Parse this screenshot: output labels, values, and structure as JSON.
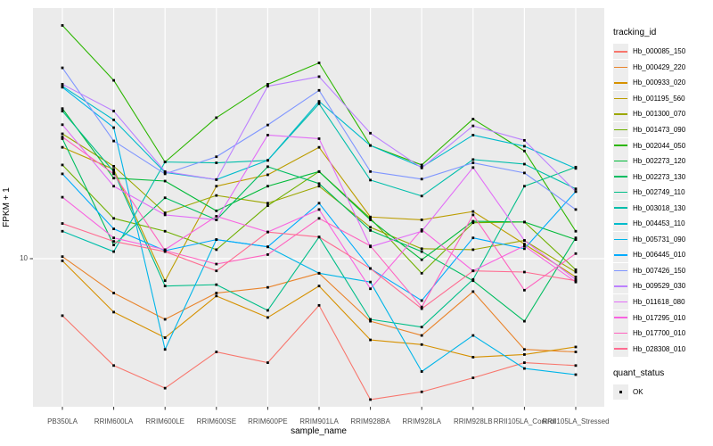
{
  "figure": {
    "panel_bg": "#ebebeb",
    "grid_color": "#ffffff",
    "tick_color": "#333333",
    "tick_label_color": "#4d4d4d",
    "point_color": "#000000"
  },
  "chart_data": {
    "type": "line",
    "title": "",
    "xlabel": "sample_name",
    "ylabel": "FPKM + 1",
    "y_scale": "log10",
    "y_ticks": [
      10
    ],
    "y_tick_labels": [
      "10"
    ],
    "ylim": [
      2.4,
      100
    ],
    "grid": "major-only",
    "marker": {
      "shape": "square",
      "color": "#000000",
      "label": "OK"
    },
    "legend": {
      "title": "tracking_id",
      "position": "right"
    },
    "legend2": {
      "title": "quant_status",
      "items": [
        {
          "label": "OK",
          "marker": "square",
          "color": "#000000"
        }
      ]
    },
    "categories": [
      "PB350LA",
      "RRIM600LA",
      "RRIM600LE",
      "RRIM600SE",
      "RRIM600PE",
      "RRIM901LA",
      "RRIM928BA",
      "RRIM928LA",
      "RRIM928LB",
      "RRII105LA_Control",
      "RRII105LA_Stressed"
    ],
    "series": [
      {
        "name": "Hb_000085_150",
        "color": "#F8766D",
        "values": [
          5.8,
          3.6,
          2.9,
          4.1,
          3.7,
          6.4,
          2.6,
          2.8,
          3.2,
          3.7,
          3.6
        ]
      },
      {
        "name": "Hb_000429_220",
        "color": "#E9842C",
        "values": [
          10.2,
          7.2,
          5.6,
          7.2,
          7.6,
          8.7,
          5.5,
          4.8,
          7.3,
          4.2,
          4.1
        ]
      },
      {
        "name": "Hb_000933_020",
        "color": "#D69100",
        "values": [
          9.8,
          6.0,
          4.7,
          7.0,
          5.7,
          7.7,
          4.6,
          4.4,
          3.9,
          4.0,
          4.3
        ]
      },
      {
        "name": "Hb_001195_560",
        "color": "#BC9D00",
        "values": [
          29,
          23.5,
          8.1,
          20,
          22.3,
          29,
          14.9,
          14.5,
          15.7,
          11.5,
          8.4
        ]
      },
      {
        "name": "Hb_001300_070",
        "color": "#9CA700",
        "values": [
          33,
          24.2,
          15.5,
          18.3,
          17.0,
          20.0,
          13.5,
          11.0,
          10.9,
          11.9,
          8.8
        ]
      },
      {
        "name": "Hb_001473_090",
        "color": "#6FB000",
        "values": [
          24.5,
          14.7,
          13.0,
          10.9,
          16.6,
          23.0,
          14.7,
          8.7,
          14.1,
          14.2,
          9.0
        ]
      },
      {
        "name": "Hb_002044_050",
        "color": "#2CB600",
        "values": [
          93,
          55,
          25.2,
          38.5,
          53,
          65,
          29.5,
          24.5,
          38,
          28,
          13
        ]
      },
      {
        "name": "Hb_002273_120",
        "color": "#00BA38",
        "values": [
          42,
          21.6,
          21.0,
          15.8,
          20.0,
          23.0,
          14.5,
          9.9,
          14.3,
          14.2,
          12.0
        ]
      },
      {
        "name": "Hb_002273_130",
        "color": "#00BD61",
        "values": [
          31.5,
          11.4,
          17.9,
          14.5,
          24.1,
          20.5,
          13.1,
          10.7,
          8.1,
          5.5,
          12.2
        ]
      },
      {
        "name": "Hb_002749_110",
        "color": "#00BE88",
        "values": [
          41,
          23.0,
          7.7,
          7.8,
          6.1,
          12.3,
          5.6,
          5.2,
          8.2,
          20.0,
          24.0
        ]
      },
      {
        "name": "Hb_003018_130",
        "color": "#00BEAB",
        "values": [
          13,
          10.7,
          25.2,
          25.0,
          25.6,
          44,
          21.2,
          18.2,
          25.8,
          24.7,
          19.5
        ]
      },
      {
        "name": "Hb_004453_110",
        "color": "#00BBCC",
        "values": [
          52,
          37.7,
          22.8,
          21.3,
          25.6,
          45,
          29.5,
          24.0,
          32.6,
          29.3,
          23.7
        ]
      },
      {
        "name": "Hb_005731_090",
        "color": "#00B5E9",
        "values": [
          51.5,
          35,
          4.2,
          12.0,
          11.2,
          8.7,
          8.0,
          3.4,
          4.8,
          3.5,
          3.3
        ]
      },
      {
        "name": "Hb_006445_010",
        "color": "#00ABFD",
        "values": [
          22.5,
          13.3,
          10.8,
          12.0,
          11.2,
          17.0,
          9.1,
          6.7,
          12.2,
          11.0,
          19.0
        ]
      },
      {
        "name": "Hb_007426_150",
        "color": "#7F96FF",
        "values": [
          62,
          30.8,
          22.5,
          26.5,
          35.9,
          50,
          23.0,
          21.4,
          25.0,
          22.7,
          16.0
        ]
      },
      {
        "name": "Hb_009529_030",
        "color": "#BC81FF",
        "values": [
          53,
          41,
          23.0,
          21.3,
          52,
          57,
          33.2,
          23.8,
          35.6,
          31.0,
          19.0
        ]
      },
      {
        "name": "Hb_011618_080",
        "color": "#E26EF7",
        "values": [
          36,
          20.0,
          15.2,
          14.5,
          32.6,
          31.5,
          11.2,
          13.0,
          23.9,
          11.9,
          8.2
        ]
      },
      {
        "name": "Hb_017295_010",
        "color": "#F863E0",
        "values": [
          18,
          12.2,
          10.9,
          15.0,
          12.9,
          16.0,
          7.5,
          13.2,
          8.9,
          11.3,
          8.0
        ]
      },
      {
        "name": "Hb_017700_010",
        "color": "#FF62BF",
        "values": [
          32,
          22.5,
          10.8,
          9.5,
          10.4,
          14.7,
          11.3,
          6.3,
          15.2,
          7.4,
          10.5
        ]
      },
      {
        "name": "Hb_028308_010",
        "color": "#FF6C91",
        "values": [
          14,
          11.8,
          10.7,
          8.9,
          12.9,
          12.3,
          9.1,
          6.2,
          8.9,
          8.8,
          8.1
        ]
      }
    ]
  }
}
